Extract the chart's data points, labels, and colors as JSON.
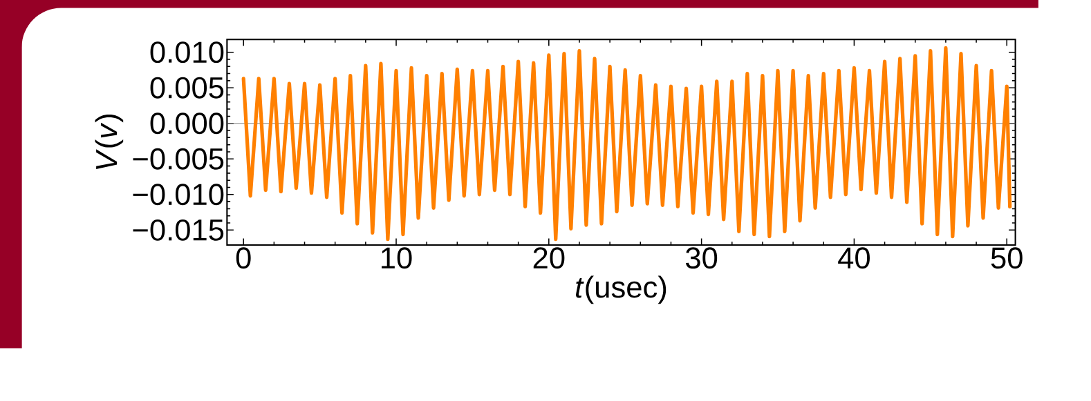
{
  "chart_data": {
    "type": "line",
    "xlabel": "*t*(usec)",
    "ylabel": "*V*(*v*)",
    "xlim": [
      -1.08,
      50.56
    ],
    "ylim": [
      -0.0171,
      0.0118
    ],
    "xticks": [
      0,
      10,
      20,
      30,
      40,
      50
    ],
    "yticks": [
      {
        "value": 0.01,
        "label": "0.010"
      },
      {
        "value": 0.005,
        "label": "0.005"
      },
      {
        "value": 0,
        "label": "0.000"
      },
      {
        "value": -0.005,
        "label": "−0.005"
      },
      {
        "value": -0.01,
        "label": "−0.010"
      },
      {
        "value": -0.015,
        "label": "−0.015"
      }
    ],
    "ref_lines": [
      {
        "axis": "y",
        "value": 0,
        "color": "#808080"
      }
    ],
    "series": [
      {
        "color": "#ff8000",
        "x": [
          0,
          0.45,
          1,
          1.45,
          2,
          2.45,
          3,
          3.45,
          4,
          4.45,
          5,
          5.45,
          6,
          6.45,
          7,
          7.45,
          8,
          8.45,
          9,
          9.45,
          10,
          10.45,
          11,
          11.45,
          12,
          12.45,
          13,
          13.45,
          14,
          14.45,
          15,
          15.45,
          16,
          16.45,
          17,
          17.45,
          18,
          18.45,
          19,
          19.45,
          20,
          20.45,
          21,
          21.45,
          22,
          22.45,
          23,
          23.45,
          24,
          24.45,
          25,
          25.45,
          26,
          26.45,
          27,
          27.45,
          28,
          28.45,
          29,
          29.45,
          30,
          30.45,
          31,
          31.45,
          32,
          32.45,
          33,
          33.45,
          34,
          34.45,
          35,
          35.45,
          36,
          36.45,
          37,
          37.45,
          38,
          38.45,
          39,
          39.45,
          40,
          40.45,
          41,
          41.45,
          42,
          42.45,
          43,
          43.45,
          44,
          44.45,
          45,
          45.45,
          46,
          46.45,
          47,
          47.45,
          48,
          48.45,
          49,
          49.45,
          50,
          50.2
        ],
        "values": [
          0.0063,
          -0.0102,
          0.0063,
          -0.0094,
          0.0063,
          -0.0096,
          0.0056,
          -0.0091,
          0.0056,
          -0.0098,
          0.0054,
          -0.0104,
          0.0063,
          -0.0126,
          0.0067,
          -0.0141,
          0.0081,
          -0.0154,
          0.0084,
          -0.0163,
          0.0074,
          -0.0156,
          0.0078,
          -0.0133,
          0.0067,
          -0.0119,
          0.007,
          -0.0108,
          0.0076,
          -0.0102,
          0.0074,
          -0.01,
          0.0074,
          -0.0094,
          0.008,
          -0.01,
          0.0087,
          -0.0117,
          0.0085,
          -0.0126,
          0.0096,
          -0.0163,
          0.0098,
          -0.0148,
          0.0102,
          -0.0143,
          0.0091,
          -0.0141,
          0.008,
          -0.0124,
          0.0075,
          -0.0115,
          0.0067,
          -0.0113,
          0.0054,
          -0.0115,
          0.0052,
          -0.0117,
          0.0049,
          -0.0126,
          0.0052,
          -0.0128,
          0.0059,
          -0.0135,
          0.0059,
          -0.0152,
          0.007,
          -0.0156,
          0.0067,
          -0.0159,
          0.0074,
          -0.0152,
          0.0074,
          -0.0137,
          0.0067,
          -0.0119,
          0.007,
          -0.0104,
          0.0074,
          -0.01,
          0.0078,
          -0.0093,
          0.0074,
          -0.0098,
          0.0087,
          -0.0104,
          0.0091,
          -0.0111,
          0.0095,
          -0.0141,
          0.0102,
          -0.0156,
          0.0106,
          -0.0159,
          0.0098,
          -0.0144,
          0.0081,
          -0.0133,
          0.0074,
          -0.0119,
          0.0052,
          -0.0117
        ]
      }
    ]
  }
}
